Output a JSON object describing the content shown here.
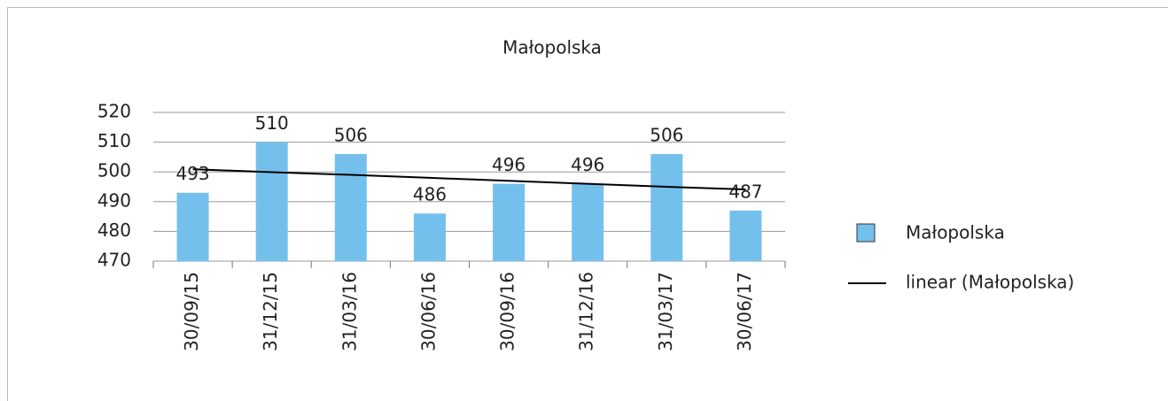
{
  "chart_data": {
    "type": "bar",
    "title": "Małopolska",
    "categories": [
      "30/09/15",
      "31/12/15",
      "31/03/16",
      "30/06/16",
      "30/09/16",
      "31/12/16",
      "31/03/17",
      "30/06/17"
    ],
    "series": [
      {
        "name": "Małopolska",
        "color": "#74c0ec",
        "values": [
          493,
          510,
          506,
          486,
          496,
          496,
          506,
          487
        ]
      }
    ],
    "trendline": {
      "name": "linear (Małopolska)",
      "color": "#000000",
      "values": [
        500.9,
        499.9,
        499.0,
        498.0,
        497.0,
        496.0,
        495.0,
        494.1
      ]
    },
    "ylim": [
      470,
      520
    ],
    "yticks": [
      470,
      480,
      490,
      500,
      510,
      520
    ],
    "grid": true,
    "legend": "right"
  }
}
